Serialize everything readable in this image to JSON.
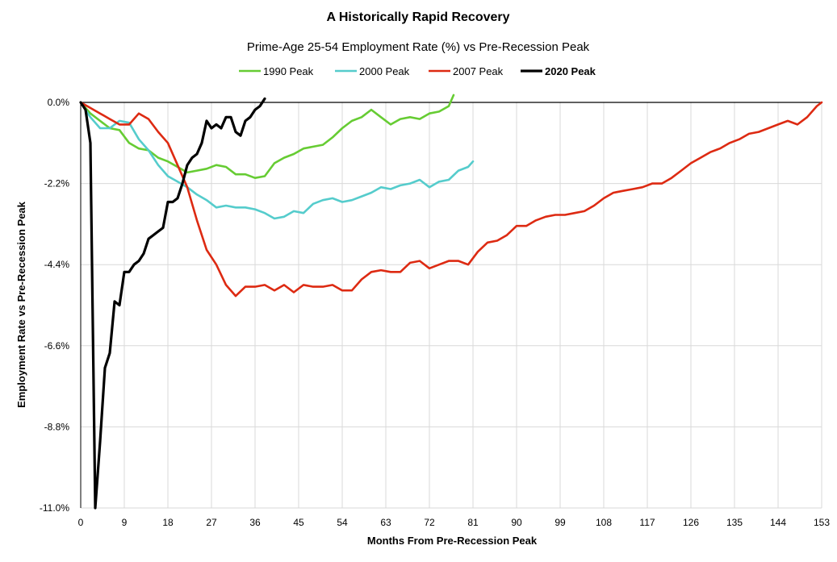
{
  "chart_data": {
    "type": "line",
    "title": "A Historically Rapid Recovery",
    "subtitle": "Prime-Age 25-54 Employment Rate (%) vs  Pre-Recession Peak",
    "xlabel": "Months From Pre-Recession Peak",
    "ylabel": "Employment Rate vs Pre-Recession Peak",
    "xlim": [
      0,
      153
    ],
    "ylim": [
      -11.0,
      0.0
    ],
    "x_ticks": [
      0,
      9,
      18,
      27,
      36,
      45,
      54,
      63,
      72,
      81,
      90,
      99,
      108,
      117,
      126,
      135,
      144,
      153
    ],
    "y_ticks": [
      0.0,
      -2.2,
      -4.4,
      -6.6,
      -8.8,
      -11.0
    ],
    "y_tick_labels": [
      "0.0%",
      "-2.2%",
      "-4.4%",
      "-6.6%",
      "-8.8%",
      "-11.0%"
    ],
    "grid": "both",
    "legend_position": "top",
    "series": [
      {
        "name": "1990 Peak",
        "color": "#66cc33",
        "bold": false,
        "x": [
          0,
          2,
          4,
          6,
          8,
          10,
          12,
          14,
          16,
          18,
          20,
          22,
          24,
          26,
          28,
          30,
          32,
          34,
          36,
          38,
          40,
          42,
          44,
          46,
          48,
          50,
          52,
          54,
          56,
          58,
          60,
          62,
          64,
          66,
          68,
          70,
          72,
          74,
          76,
          77
        ],
        "y": [
          0.0,
          -0.3,
          -0.5,
          -0.7,
          -0.75,
          -1.1,
          -1.25,
          -1.3,
          -1.5,
          -1.6,
          -1.75,
          -1.9,
          -1.85,
          -1.8,
          -1.7,
          -1.75,
          -1.95,
          -1.95,
          -2.05,
          -2.0,
          -1.65,
          -1.5,
          -1.4,
          -1.25,
          -1.2,
          -1.15,
          -0.95,
          -0.7,
          -0.5,
          -0.4,
          -0.2,
          -0.4,
          -0.6,
          -0.45,
          -0.4,
          -0.45,
          -0.3,
          -0.25,
          -0.1,
          0.2
        ]
      },
      {
        "name": "2000 Peak",
        "color": "#55cccc",
        "bold": false,
        "x": [
          0,
          2,
          4,
          6,
          8,
          10,
          12,
          14,
          16,
          18,
          20,
          22,
          24,
          26,
          28,
          30,
          32,
          34,
          36,
          38,
          40,
          42,
          44,
          46,
          48,
          50,
          52,
          54,
          56,
          58,
          60,
          62,
          64,
          66,
          68,
          70,
          72,
          74,
          76,
          78,
          80,
          81
        ],
        "y": [
          0.0,
          -0.4,
          -0.7,
          -0.7,
          -0.5,
          -0.55,
          -1.0,
          -1.3,
          -1.7,
          -2.0,
          -2.15,
          -2.3,
          -2.5,
          -2.65,
          -2.85,
          -2.8,
          -2.85,
          -2.85,
          -2.9,
          -3.0,
          -3.15,
          -3.1,
          -2.95,
          -3.0,
          -2.75,
          -2.65,
          -2.6,
          -2.7,
          -2.65,
          -2.55,
          -2.45,
          -2.3,
          -2.35,
          -2.25,
          -2.2,
          -2.1,
          -2.3,
          -2.15,
          -2.1,
          -1.85,
          -1.75,
          -1.6
        ]
      },
      {
        "name": "2007 Peak",
        "color": "#dd2a12",
        "bold": false,
        "x": [
          0,
          2,
          4,
          6,
          8,
          10,
          12,
          14,
          16,
          18,
          20,
          22,
          24,
          26,
          28,
          30,
          32,
          34,
          36,
          38,
          40,
          42,
          44,
          46,
          48,
          50,
          52,
          54,
          56,
          58,
          60,
          62,
          64,
          66,
          68,
          70,
          72,
          74,
          76,
          78,
          80,
          82,
          84,
          86,
          88,
          90,
          92,
          94,
          96,
          98,
          100,
          102,
          104,
          106,
          108,
          110,
          112,
          114,
          116,
          118,
          120,
          122,
          124,
          126,
          128,
          130,
          132,
          134,
          136,
          138,
          140,
          142,
          144,
          146,
          148,
          150,
          152,
          153
        ],
        "y": [
          0.0,
          -0.15,
          -0.3,
          -0.45,
          -0.6,
          -0.6,
          -0.3,
          -0.45,
          -0.8,
          -1.1,
          -1.7,
          -2.3,
          -3.2,
          -4.0,
          -4.4,
          -4.95,
          -5.25,
          -5.0,
          -5.0,
          -4.95,
          -5.1,
          -4.95,
          -5.15,
          -4.95,
          -5.0,
          -5.0,
          -4.95,
          -5.1,
          -5.1,
          -4.8,
          -4.6,
          -4.55,
          -4.6,
          -4.6,
          -4.35,
          -4.3,
          -4.5,
          -4.4,
          -4.3,
          -4.3,
          -4.4,
          -4.05,
          -3.8,
          -3.75,
          -3.6,
          -3.35,
          -3.35,
          -3.2,
          -3.1,
          -3.05,
          -3.05,
          -3.0,
          -2.95,
          -2.8,
          -2.6,
          -2.45,
          -2.4,
          -2.35,
          -2.3,
          -2.2,
          -2.2,
          -2.05,
          -1.85,
          -1.65,
          -1.5,
          -1.35,
          -1.25,
          -1.1,
          -1.0,
          -0.85,
          -0.8,
          -0.7,
          -0.6,
          -0.5,
          -0.6,
          -0.4,
          -0.1,
          0.0
        ]
      },
      {
        "name": "2020 Peak",
        "color": "#000000",
        "bold": true,
        "x": [
          0,
          1,
          2,
          3,
          4,
          5,
          6,
          7,
          8,
          9,
          10,
          11,
          12,
          13,
          14,
          15,
          16,
          17,
          18,
          19,
          20,
          21,
          22,
          23,
          24,
          25,
          26,
          27,
          28,
          29,
          30,
          31,
          32,
          33,
          34,
          35,
          36,
          37,
          38
        ],
        "y": [
          0.0,
          -0.2,
          -1.1,
          -11.0,
          -9.2,
          -7.2,
          -6.8,
          -5.4,
          -5.5,
          -4.6,
          -4.6,
          -4.4,
          -4.3,
          -4.1,
          -3.7,
          -3.6,
          -3.5,
          -3.4,
          -2.7,
          -2.7,
          -2.6,
          -2.2,
          -1.7,
          -1.5,
          -1.4,
          -1.1,
          -0.5,
          -0.7,
          -0.6,
          -0.7,
          -0.4,
          -0.4,
          -0.8,
          -0.9,
          -0.5,
          -0.4,
          -0.2,
          -0.1,
          0.1
        ]
      }
    ]
  }
}
